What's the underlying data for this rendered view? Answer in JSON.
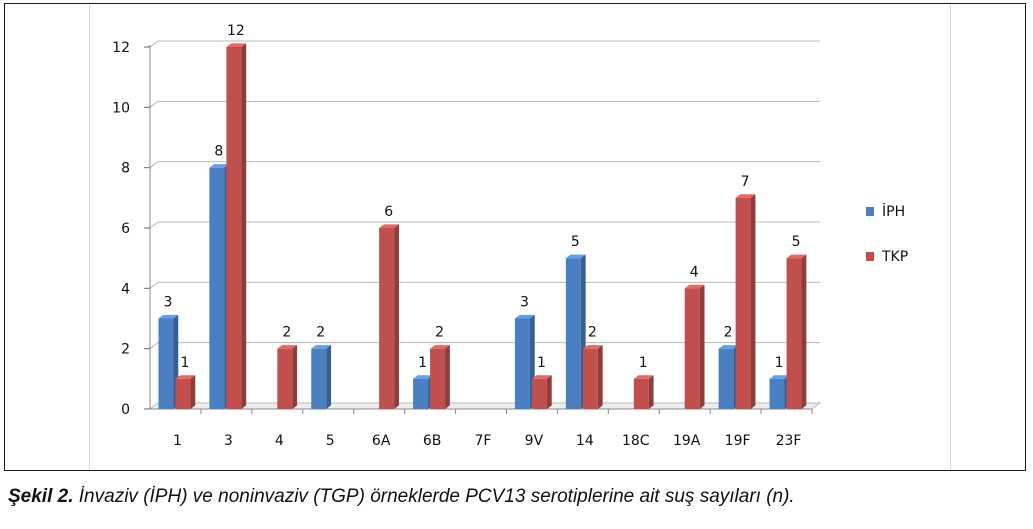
{
  "chart_data": {
    "type": "bar",
    "categories": [
      "1",
      "3",
      "4",
      "5",
      "6A",
      "6B",
      "7F",
      "9V",
      "14",
      "18C",
      "19A",
      "19F",
      "23F"
    ],
    "series": [
      {
        "name": "İPH",
        "color": "#4a7fc1",
        "values": [
          3,
          8,
          0,
          2,
          0,
          1,
          0,
          3,
          5,
          0,
          0,
          2,
          1
        ]
      },
      {
        "name": "TKP",
        "color": "#c0504d",
        "values": [
          1,
          12,
          2,
          0,
          6,
          2,
          0,
          1,
          2,
          1,
          4,
          7,
          5
        ]
      }
    ],
    "data_labels": {
      "İPH": [
        "3",
        "8",
        "",
        "2",
        "",
        "1",
        "",
        "3",
        "5",
        "",
        "",
        "2",
        "1"
      ],
      "TKP": [
        "1",
        "12",
        "2",
        "",
        "6",
        "2",
        "",
        "1",
        "2",
        "1",
        "4",
        "7",
        "5"
      ]
    },
    "ylim": [
      0,
      12
    ],
    "yticks": [
      0,
      2,
      4,
      6,
      8,
      10,
      12
    ],
    "grid": true,
    "legend_position": "right",
    "style": "3d-clustered-column"
  },
  "caption": {
    "label": "Şekil 2.",
    "text": " İnvaziv (İPH) ve noninvaziv (TGP) örneklerde PCV13 serotiplerine ait suş sayıları (n)."
  }
}
